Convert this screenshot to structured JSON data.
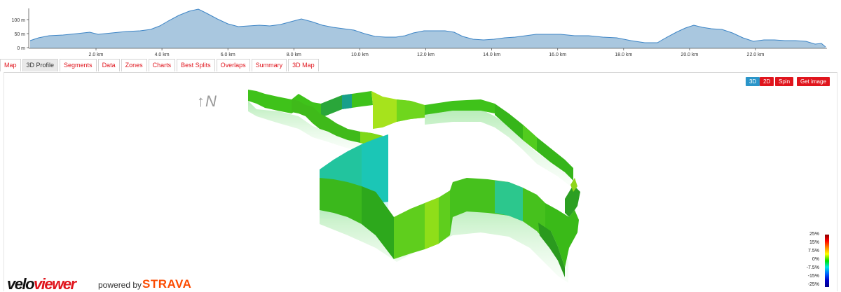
{
  "elevation_profile": {
    "y_ticks": [
      "100 m",
      "50 m",
      "0 m"
    ],
    "x_ticks": [
      "2.0 km",
      "4.0 km",
      "6.0 km",
      "8.0 km",
      "10.0 km",
      "12.0 km",
      "14.0 km",
      "16.0 km",
      "18.0 km",
      "20.0 km",
      "22.0 km"
    ],
    "fill_color": "#a9c7df",
    "line_color": "#3d85c6"
  },
  "tabs": [
    {
      "label": "Map",
      "active": false
    },
    {
      "label": "3D Profile",
      "active": true
    },
    {
      "label": "Segments",
      "active": false
    },
    {
      "label": "Data",
      "active": false
    },
    {
      "label": "Zones",
      "active": false
    },
    {
      "label": "Charts",
      "active": false
    },
    {
      "label": "Best Splits",
      "active": false
    },
    {
      "label": "Overlaps",
      "active": false
    },
    {
      "label": "Summary",
      "active": false
    },
    {
      "label": "3D Map",
      "active": false
    }
  ],
  "controls": {
    "view_3d": "3D",
    "view_2d": "2D",
    "spin": "Spin",
    "get_image": "Get image"
  },
  "north_indicator": "↑N",
  "gradient_legend": {
    "labels": [
      "25%",
      "15%",
      "7.5%",
      "0%",
      "-7.5%",
      "-15%",
      "-25%"
    ]
  },
  "branding": {
    "logo_part1": "velo",
    "logo_part2": "viewer",
    "powered_by": "powered by",
    "strava": "STRAVA"
  },
  "colors": {
    "accent_red": "#e0151d",
    "active_blue": "#2a95c9",
    "strava_orange": "#fc4c02"
  }
}
